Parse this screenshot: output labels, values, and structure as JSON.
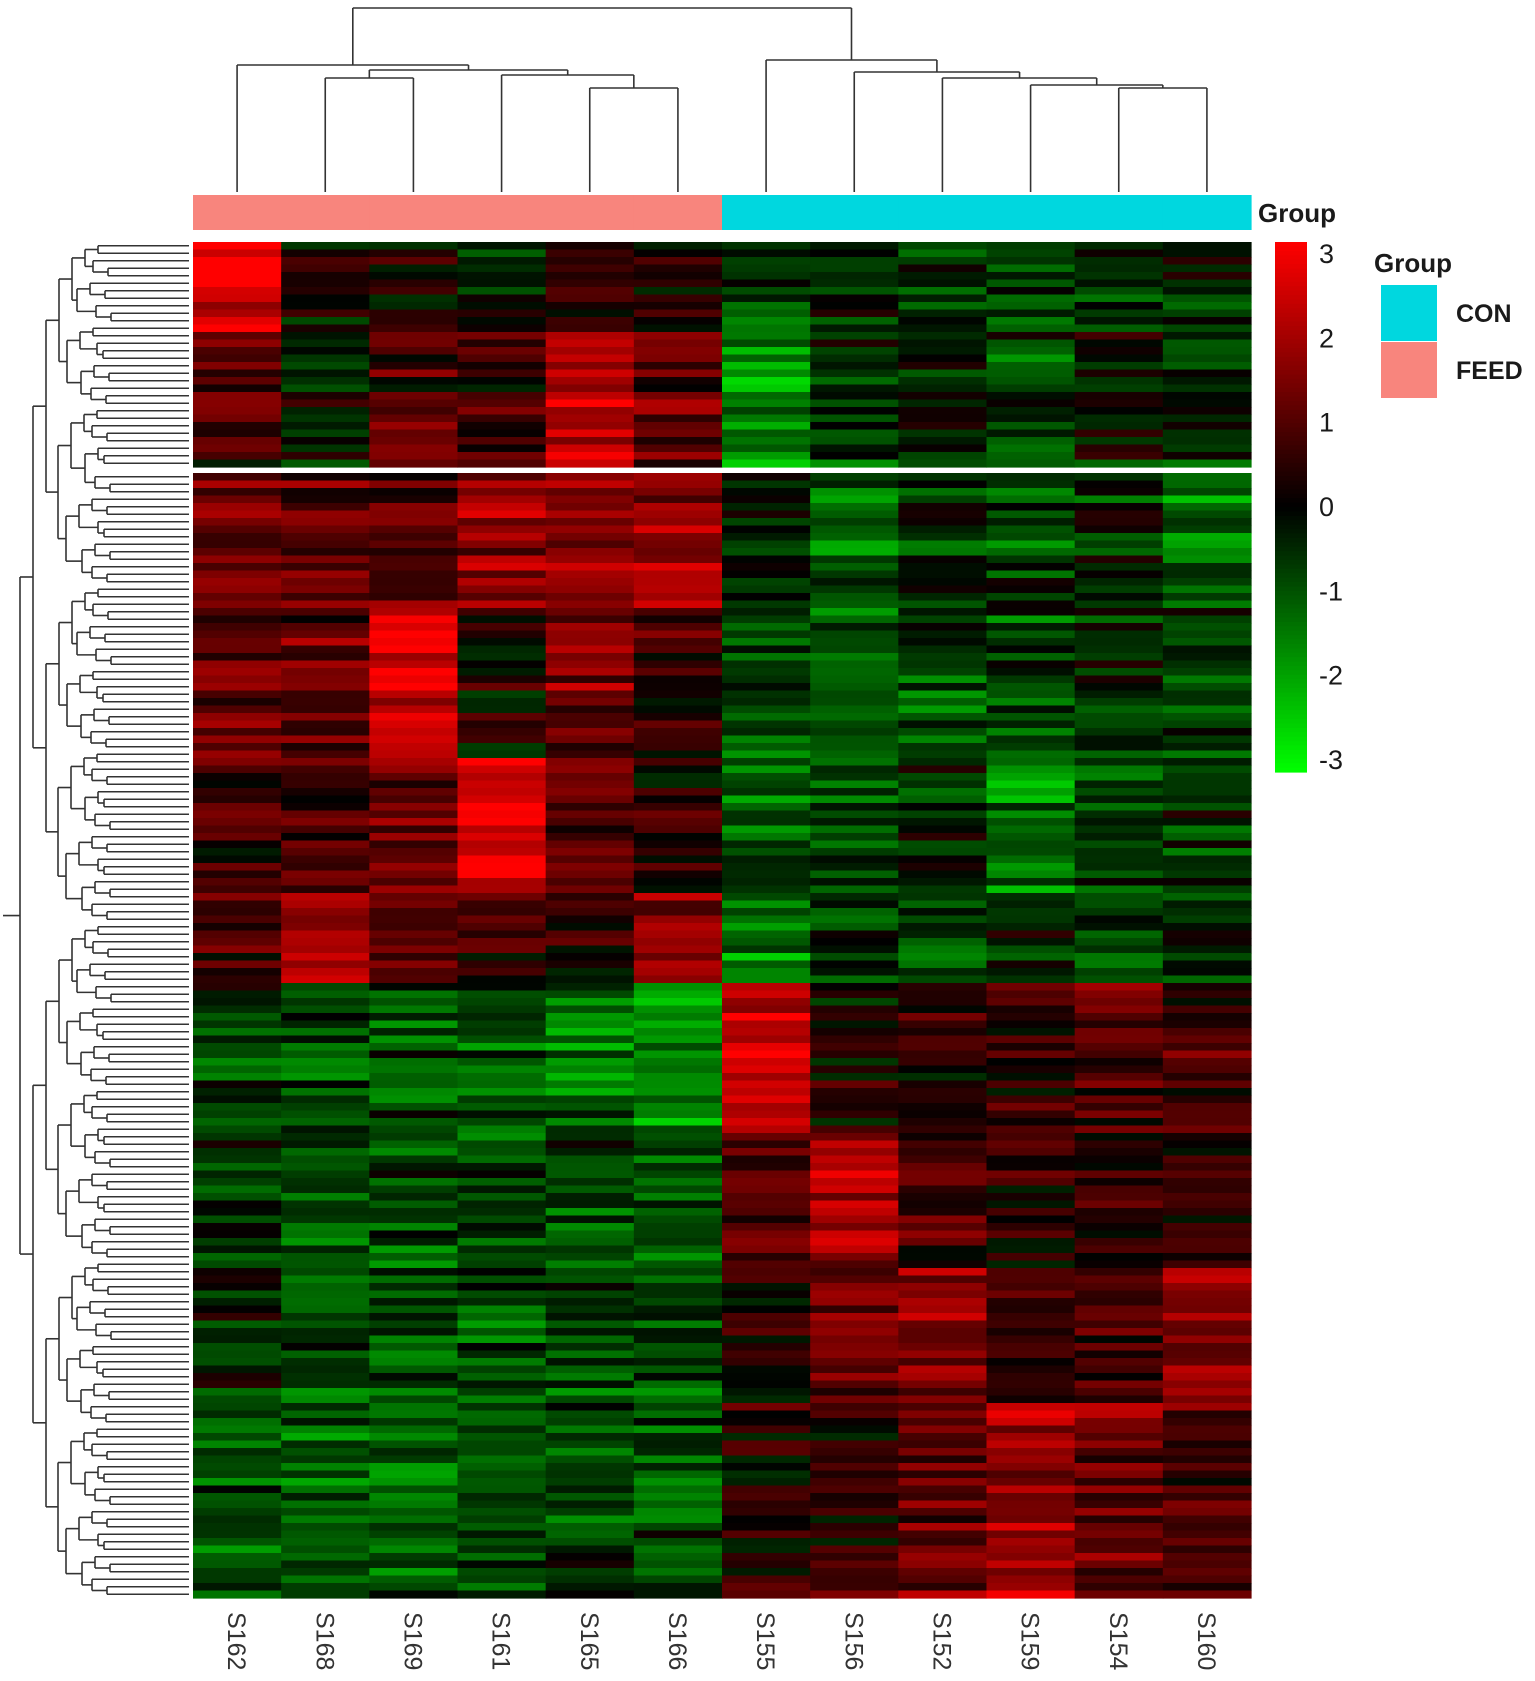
{
  "chart_data": {
    "type": "heatmap",
    "title": "",
    "xlabel": "",
    "ylabel": "",
    "columns": [
      "S162",
      "S168",
      "S169",
      "S161",
      "S165",
      "S166",
      "S155",
      "S156",
      "S152",
      "S159",
      "S154",
      "S160"
    ],
    "column_groups": [
      "FEED",
      "FEED",
      "FEED",
      "FEED",
      "FEED",
      "FEED",
      "CON",
      "CON",
      "CON",
      "CON",
      "CON",
      "CON"
    ],
    "annotation_label": "Group",
    "group_legend": {
      "title": "Group",
      "entries": [
        {
          "label": "CON",
          "color": "#00D7DF"
        },
        {
          "label": "FEED",
          "color": "#F8857D"
        }
      ]
    },
    "color_scale": {
      "min": -3,
      "max": 3,
      "low_color": "#00FF00",
      "mid_color": "#000000",
      "high_color": "#FF0000",
      "ticks": [
        3,
        2,
        1,
        0,
        -1,
        -2,
        -3
      ],
      "tick_labels": [
        "3",
        "2",
        "1",
        "0",
        "-1",
        "-2",
        "-3"
      ]
    },
    "row_count": 180,
    "row_gap_after": 30,
    "row_blocks": [
      {
        "rows": 12,
        "values": [
          2.8,
          0.1,
          0.3,
          -0.2,
          0.6,
          0.3,
          -0.6,
          -0.3,
          -0.5,
          -0.6,
          -0.3,
          -0.3
        ]
      },
      {
        "rows": 18,
        "values": [
          0.7,
          -0.3,
          0.8,
          0.7,
          2.0,
          1.0,
          -1.6,
          -0.6,
          -0.5,
          -0.8,
          -0.3,
          -0.8
        ]
      },
      {
        "rows": 18,
        "values": [
          1.2,
          0.9,
          0.8,
          1.6,
          1.4,
          1.9,
          -0.3,
          -1.1,
          -0.6,
          -0.8,
          -0.4,
          -1.4
        ]
      },
      {
        "rows": 20,
        "values": [
          1.2,
          1.1,
          2.5,
          0.2,
          1.4,
          0.5,
          -0.9,
          -1.2,
          -0.9,
          -0.7,
          -0.3,
          -0.6
        ]
      },
      {
        "rows": 18,
        "values": [
          0.6,
          0.7,
          1.3,
          2.6,
          1.0,
          0.6,
          -1.1,
          -0.8,
          -0.4,
          -1.3,
          -0.7,
          -0.5
        ]
      },
      {
        "rows": 12,
        "values": [
          0.8,
          2.2,
          0.9,
          0.6,
          0.3,
          1.4,
          -1.3,
          -0.6,
          -0.8,
          -0.5,
          -0.8,
          -0.6
        ]
      },
      {
        "rows": 20,
        "values": [
          -0.6,
          -0.7,
          -0.9,
          -1.1,
          -1.3,
          -1.5,
          2.3,
          0.3,
          0.4,
          0.7,
          0.9,
          0.7
        ]
      },
      {
        "rows": 18,
        "values": [
          -0.6,
          -0.9,
          -0.9,
          -0.8,
          -0.9,
          -0.9,
          0.9,
          1.9,
          0.8,
          0.4,
          0.5,
          0.4
        ]
      },
      {
        "rows": 18,
        "values": [
          -0.4,
          -0.9,
          -0.8,
          -0.8,
          -0.8,
          -0.7,
          0.3,
          1.2,
          1.6,
          0.6,
          0.7,
          1.5
        ]
      },
      {
        "rows": 26,
        "values": [
          -1.0,
          -1.0,
          -1.1,
          -0.9,
          -0.8,
          -0.9,
          0.4,
          0.5,
          1.2,
          1.8,
          1.2,
          0.9
        ]
      }
    ]
  }
}
